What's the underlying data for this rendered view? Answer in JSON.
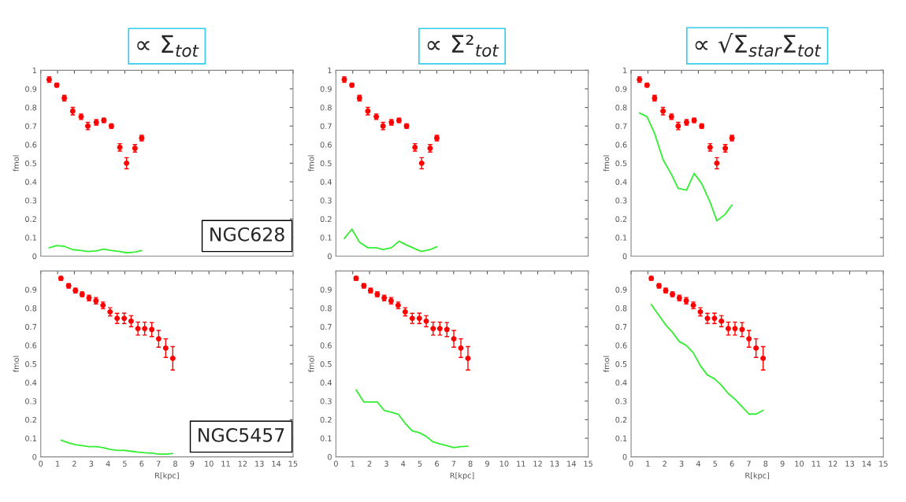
{
  "chart_data": [
    {
      "type": "scatter",
      "title": "∝ Σ$_{tot}$",
      "ylabel": "fmol",
      "xlim": [
        0,
        15
      ],
      "xticks": [
        0,
        1,
        2,
        3,
        4,
        5,
        6,
        7,
        8,
        9,
        10,
        11,
        12,
        13,
        14,
        15
      ],
      "ylim": [
        0,
        1
      ],
      "yticks": [
        0,
        0.1,
        0.2,
        0.3,
        0.4,
        0.5,
        0.6,
        0.7,
        0.8,
        0.9,
        1
      ],
      "tick_labels": "y",
      "grid": false,
      "annotations": [
        "NGC628"
      ],
      "series": [
        {
          "marker": "circle",
          "color": "#ff0000",
          "x": [
            0.5,
            0.95,
            1.4,
            1.9,
            2.4,
            2.8,
            3.3,
            3.75,
            4.2,
            4.7,
            5.1,
            5.6,
            6.0
          ],
          "values": [
            0.95,
            0.92,
            0.85,
            0.78,
            0.75,
            0.7,
            0.72,
            0.73,
            0.7,
            0.585,
            0.5,
            0.58,
            0.635
          ],
          "errors": [
            0.015,
            0.01,
            0.015,
            0.02,
            0.015,
            0.02,
            0.015,
            0.012,
            0.012,
            0.02,
            0.03,
            0.02,
            0.015
          ]
        },
        {
          "type": "line",
          "marker": "none",
          "color": "#33ee33",
          "x": [
            0.5,
            0.95,
            1.4,
            1.9,
            2.4,
            2.8,
            3.3,
            3.75,
            4.2,
            4.7,
            5.1,
            5.6,
            6.0
          ],
          "values": [
            0.045,
            0.057,
            0.053,
            0.035,
            0.03,
            0.025,
            0.028,
            0.038,
            0.03,
            0.025,
            0.018,
            0.022,
            0.03
          ]
        }
      ]
    },
    {
      "type": "scatter",
      "title": "∝ Σ²$_{tot}$",
      "ylabel": "fmol",
      "xlim": [
        0,
        15
      ],
      "xticks": [
        0,
        1,
        2,
        3,
        4,
        5,
        6,
        7,
        8,
        9,
        10,
        11,
        12,
        13,
        14,
        15
      ],
      "ylim": [
        0,
        1
      ],
      "yticks": [
        0,
        0.1,
        0.2,
        0.3,
        0.4,
        0.5,
        0.6,
        0.7,
        0.8,
        0.9,
        1
      ],
      "tick_labels": "y",
      "grid": false,
      "series": [
        {
          "marker": "circle",
          "color": "#ff0000",
          "x": [
            0.5,
            0.95,
            1.4,
            1.9,
            2.4,
            2.8,
            3.3,
            3.75,
            4.2,
            4.7,
            5.1,
            5.6,
            6.0
          ],
          "values": [
            0.95,
            0.92,
            0.85,
            0.78,
            0.75,
            0.7,
            0.72,
            0.73,
            0.7,
            0.585,
            0.5,
            0.58,
            0.635
          ],
          "errors": [
            0.015,
            0.01,
            0.015,
            0.02,
            0.015,
            0.02,
            0.015,
            0.012,
            0.012,
            0.02,
            0.03,
            0.02,
            0.015
          ]
        },
        {
          "type": "line",
          "marker": "none",
          "color": "#33ee33",
          "x": [
            0.5,
            0.95,
            1.4,
            1.9,
            2.4,
            2.8,
            3.3,
            3.75,
            4.2,
            4.7,
            5.1,
            5.6,
            6.0
          ],
          "values": [
            0.095,
            0.145,
            0.075,
            0.045,
            0.045,
            0.035,
            0.045,
            0.08,
            0.06,
            0.04,
            0.025,
            0.035,
            0.05
          ]
        }
      ]
    },
    {
      "type": "scatter",
      "title": "∝ √Σ$_{star}$Σ$_{tot}$",
      "ylabel": "fmol",
      "xlim": [
        0,
        15
      ],
      "xticks": [
        0,
        1,
        2,
        3,
        4,
        5,
        6,
        7,
        8,
        9,
        10,
        11,
        12,
        13,
        14,
        15
      ],
      "ylim": [
        0,
        1
      ],
      "yticks": [
        0,
        0.1,
        0.2,
        0.3,
        0.4,
        0.5,
        0.6,
        0.7,
        0.8,
        0.9,
        1
      ],
      "tick_labels": "y",
      "grid": false,
      "series": [
        {
          "marker": "circle",
          "color": "#ff0000",
          "x": [
            0.5,
            0.95,
            1.4,
            1.9,
            2.4,
            2.8,
            3.3,
            3.75,
            4.2,
            4.7,
            5.1,
            5.6,
            6.0
          ],
          "values": [
            0.95,
            0.92,
            0.85,
            0.78,
            0.75,
            0.7,
            0.72,
            0.73,
            0.7,
            0.585,
            0.5,
            0.58,
            0.635
          ],
          "errors": [
            0.015,
            0.01,
            0.015,
            0.02,
            0.015,
            0.02,
            0.015,
            0.012,
            0.012,
            0.02,
            0.03,
            0.02,
            0.015
          ]
        },
        {
          "type": "line",
          "marker": "none",
          "color": "#33ee33",
          "x": [
            0.5,
            0.95,
            1.4,
            1.9,
            2.4,
            2.8,
            3.3,
            3.75,
            4.2,
            4.7,
            5.1,
            5.6,
            6.0
          ],
          "values": [
            0.77,
            0.75,
            0.66,
            0.52,
            0.44,
            0.365,
            0.355,
            0.445,
            0.39,
            0.29,
            0.19,
            0.225,
            0.275
          ]
        }
      ]
    },
    {
      "type": "scatter",
      "xlabel": "R[kpc]",
      "ylabel": "fmol",
      "xlim": [
        0,
        15
      ],
      "xticks": [
        0,
        1,
        2,
        3,
        4,
        5,
        6,
        7,
        8,
        9,
        10,
        11,
        12,
        13,
        14,
        15
      ],
      "ylim": [
        0,
        1
      ],
      "yticks": [
        0,
        0.1,
        0.2,
        0.3,
        0.4,
        0.5,
        0.6,
        0.7,
        0.8,
        0.9
      ],
      "grid": false,
      "annotations": [
        "NGC5457"
      ],
      "series": [
        {
          "marker": "circle",
          "color": "#ff0000",
          "x": [
            1.2,
            1.66,
            2.06,
            2.46,
            2.87,
            3.28,
            3.7,
            4.12,
            4.54,
            4.96,
            5.37,
            5.78,
            6.18,
            6.6,
            7.01,
            7.43,
            7.85
          ],
          "values": [
            0.96,
            0.92,
            0.895,
            0.875,
            0.855,
            0.84,
            0.815,
            0.78,
            0.745,
            0.745,
            0.73,
            0.69,
            0.69,
            0.685,
            0.635,
            0.585,
            0.53
          ],
          "errors": [
            0.01,
            0.012,
            0.013,
            0.013,
            0.015,
            0.017,
            0.018,
            0.022,
            0.027,
            0.028,
            0.03,
            0.035,
            0.035,
            0.038,
            0.045,
            0.05,
            0.063
          ]
        },
        {
          "type": "line",
          "marker": "none",
          "color": "#33ee33",
          "x": [
            1.2,
            1.66,
            2.06,
            2.46,
            2.87,
            3.28,
            3.7,
            4.12,
            4.54,
            4.96,
            5.37,
            5.78,
            6.18,
            6.6,
            7.01,
            7.43,
            7.85
          ],
          "values": [
            0.09,
            0.075,
            0.065,
            0.06,
            0.055,
            0.055,
            0.05,
            0.04,
            0.035,
            0.035,
            0.03,
            0.025,
            0.022,
            0.02,
            0.015,
            0.015,
            0.018
          ]
        }
      ]
    },
    {
      "type": "scatter",
      "xlabel": "R[kpc]",
      "ylabel": "fmol",
      "xlim": [
        0,
        15
      ],
      "xticks": [
        0,
        1,
        2,
        3,
        4,
        5,
        6,
        7,
        8,
        9,
        10,
        11,
        12,
        13,
        14,
        15
      ],
      "ylim": [
        0,
        1
      ],
      "yticks": [
        0,
        0.1,
        0.2,
        0.3,
        0.4,
        0.5,
        0.6,
        0.7,
        0.8,
        0.9
      ],
      "grid": false,
      "series": [
        {
          "marker": "circle",
          "color": "#ff0000",
          "x": [
            1.2,
            1.66,
            2.06,
            2.46,
            2.87,
            3.28,
            3.7,
            4.12,
            4.54,
            4.96,
            5.37,
            5.78,
            6.18,
            6.6,
            7.01,
            7.43,
            7.85
          ],
          "values": [
            0.96,
            0.92,
            0.895,
            0.875,
            0.855,
            0.84,
            0.815,
            0.78,
            0.745,
            0.745,
            0.73,
            0.69,
            0.69,
            0.685,
            0.635,
            0.585,
            0.53
          ],
          "errors": [
            0.01,
            0.012,
            0.013,
            0.013,
            0.015,
            0.017,
            0.018,
            0.022,
            0.027,
            0.028,
            0.03,
            0.035,
            0.035,
            0.038,
            0.045,
            0.05,
            0.063
          ]
        },
        {
          "type": "line",
          "marker": "none",
          "color": "#33ee33",
          "x": [
            1.2,
            1.66,
            2.06,
            2.46,
            2.87,
            3.28,
            3.7,
            4.12,
            4.54,
            4.96,
            5.37,
            5.78,
            6.18,
            6.6,
            7.01,
            7.43,
            7.85
          ],
          "values": [
            0.36,
            0.295,
            0.295,
            0.295,
            0.25,
            0.24,
            0.23,
            0.18,
            0.14,
            0.13,
            0.11,
            0.08,
            0.07,
            0.06,
            0.05,
            0.055,
            0.057
          ]
        }
      ]
    },
    {
      "type": "scatter",
      "xlabel": "R[kpc]",
      "ylabel": "fmol",
      "xlim": [
        0,
        15
      ],
      "xticks": [
        0,
        1,
        2,
        3,
        4,
        5,
        6,
        7,
        8,
        9,
        10,
        11,
        12,
        13,
        14,
        15
      ],
      "ylim": [
        0,
        1
      ],
      "yticks": [
        0,
        0.1,
        0.2,
        0.3,
        0.4,
        0.5,
        0.6,
        0.7,
        0.8,
        0.9
      ],
      "grid": false,
      "series": [
        {
          "marker": "circle",
          "color": "#ff0000",
          "x": [
            1.2,
            1.66,
            2.06,
            2.46,
            2.87,
            3.28,
            3.7,
            4.12,
            4.54,
            4.96,
            5.37,
            5.78,
            6.18,
            6.6,
            7.01,
            7.43,
            7.85
          ],
          "values": [
            0.96,
            0.92,
            0.895,
            0.875,
            0.855,
            0.84,
            0.815,
            0.78,
            0.745,
            0.745,
            0.73,
            0.69,
            0.69,
            0.685,
            0.635,
            0.585,
            0.53
          ],
          "errors": [
            0.01,
            0.012,
            0.013,
            0.013,
            0.015,
            0.017,
            0.018,
            0.022,
            0.027,
            0.028,
            0.03,
            0.035,
            0.035,
            0.038,
            0.045,
            0.05,
            0.063
          ]
        },
        {
          "type": "line",
          "marker": "none",
          "color": "#33ee33",
          "x": [
            1.2,
            1.66,
            2.06,
            2.46,
            2.87,
            3.28,
            3.7,
            4.12,
            4.54,
            4.96,
            5.37,
            5.78,
            6.18,
            6.6,
            7.01,
            7.43,
            7.85
          ],
          "values": [
            0.82,
            0.76,
            0.71,
            0.67,
            0.62,
            0.6,
            0.56,
            0.49,
            0.44,
            0.42,
            0.385,
            0.34,
            0.31,
            0.27,
            0.23,
            0.23,
            0.25
          ]
        }
      ]
    }
  ]
}
